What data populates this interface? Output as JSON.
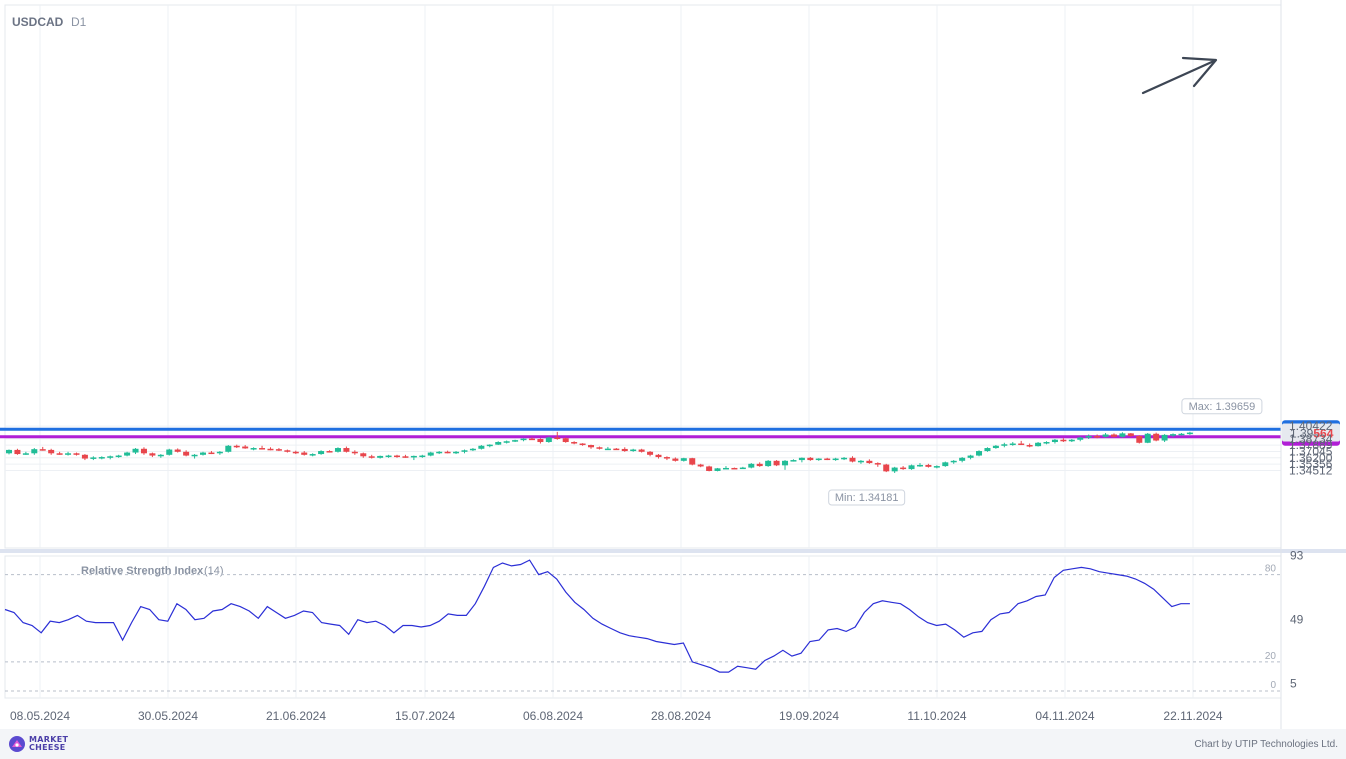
{
  "header": {
    "symbol": "USDCAD",
    "timeframe": "D1"
  },
  "chart_data": [
    {
      "type": "candlestick",
      "symbol": "USDCAD",
      "timeframe": "D1",
      "ylim": [
        1.3402,
        1.405
      ],
      "y_ticks": [
        "1.40422",
        "1.38734",
        "1.37889",
        "1.37045",
        "1.36200",
        "1.35356",
        "1.34512"
      ],
      "x_ticks": [
        "08.05.2024",
        "30.05.2024",
        "21.06.2024",
        "15.07.2024",
        "06.08.2024",
        "28.08.2024",
        "19.09.2024",
        "11.10.2024",
        "04.11.2024",
        "22.11.2024"
      ],
      "grid": true,
      "colors": {
        "up": "#21bd97",
        "down": "#e8464c"
      },
      "levels": [
        {
          "value": 1.4,
          "label": "1.40000",
          "color": "#1f6fe0"
        },
        {
          "value": 1.39,
          "label": "1.39000",
          "color": "#b11ed6"
        }
      ],
      "current_price": {
        "value": 1.39564,
        "label_prefix": "1.39",
        "label_suffix": "564"
      },
      "max_annotation": {
        "label": "Max: 1.39659",
        "value": 1.39659
      },
      "min_annotation": {
        "label": "Min: 1.34181",
        "value": 1.34181
      },
      "annotations": [
        {
          "type": "arrow",
          "direction": "up",
          "color": "#3d4654"
        }
      ],
      "candles": [
        [
          1.368,
          1.373,
          1.3665,
          1.3725
        ],
        [
          1.3725,
          1.374,
          1.366,
          1.367
        ],
        [
          1.367,
          1.37,
          1.366,
          1.368
        ],
        [
          1.368,
          1.375,
          1.366,
          1.3735
        ],
        [
          1.3735,
          1.3765,
          1.3715,
          1.3725
        ],
        [
          1.3725,
          1.374,
          1.366,
          1.368
        ],
        [
          1.368,
          1.37,
          1.366,
          1.3675
        ],
        [
          1.3675,
          1.37,
          1.365,
          1.368
        ],
        [
          1.368,
          1.369,
          1.365,
          1.366
        ],
        [
          1.366,
          1.367,
          1.359,
          1.361
        ],
        [
          1.361,
          1.364,
          1.359,
          1.3625
        ],
        [
          1.3625,
          1.364,
          1.36,
          1.363
        ],
        [
          1.363,
          1.365,
          1.36,
          1.364
        ],
        [
          1.364,
          1.366,
          1.362,
          1.365
        ],
        [
          1.365,
          1.37,
          1.364,
          1.369
        ],
        [
          1.369,
          1.375,
          1.367,
          1.374
        ],
        [
          1.374,
          1.376,
          1.366,
          1.368
        ],
        [
          1.368,
          1.369,
          1.363,
          1.365
        ],
        [
          1.365,
          1.367,
          1.362,
          1.366
        ],
        [
          1.366,
          1.374,
          1.365,
          1.373
        ],
        [
          1.373,
          1.3745,
          1.369,
          1.37
        ],
        [
          1.37,
          1.372,
          1.364,
          1.365
        ],
        [
          1.365,
          1.367,
          1.361,
          1.366
        ],
        [
          1.366,
          1.37,
          1.365,
          1.369
        ],
        [
          1.369,
          1.371,
          1.367,
          1.368
        ],
        [
          1.368,
          1.371,
          1.366,
          1.37
        ],
        [
          1.37,
          1.379,
          1.369,
          1.378
        ],
        [
          1.378,
          1.3795,
          1.375,
          1.377
        ],
        [
          1.377,
          1.379,
          1.374,
          1.3745
        ],
        [
          1.3745,
          1.376,
          1.372,
          1.375
        ],
        [
          1.375,
          1.378,
          1.373,
          1.374
        ],
        [
          1.374,
          1.376,
          1.372,
          1.3735
        ],
        [
          1.3735,
          1.375,
          1.371,
          1.372
        ],
        [
          1.372,
          1.373,
          1.369,
          1.37
        ],
        [
          1.37,
          1.3715,
          1.367,
          1.369
        ],
        [
          1.369,
          1.371,
          1.365,
          1.366
        ],
        [
          1.366,
          1.368,
          1.364,
          1.367
        ],
        [
          1.367,
          1.372,
          1.366,
          1.371
        ],
        [
          1.371,
          1.372,
          1.369,
          1.37
        ],
        [
          1.37,
          1.376,
          1.369,
          1.375
        ],
        [
          1.375,
          1.377,
          1.369,
          1.37
        ],
        [
          1.37,
          1.372,
          1.366,
          1.368
        ],
        [
          1.368,
          1.369,
          1.362,
          1.364
        ],
        [
          1.364,
          1.366,
          1.361,
          1.362
        ],
        [
          1.362,
          1.365,
          1.361,
          1.3645
        ],
        [
          1.3645,
          1.366,
          1.362,
          1.365
        ],
        [
          1.365,
          1.366,
          1.362,
          1.364
        ],
        [
          1.364,
          1.366,
          1.362,
          1.363
        ],
        [
          1.363,
          1.365,
          1.359,
          1.3645
        ],
        [
          1.3645,
          1.366,
          1.362,
          1.365
        ],
        [
          1.365,
          1.37,
          1.364,
          1.369
        ],
        [
          1.369,
          1.371,
          1.367,
          1.37
        ],
        [
          1.37,
          1.3715,
          1.368,
          1.369
        ],
        [
          1.369,
          1.371,
          1.367,
          1.37
        ],
        [
          1.37,
          1.373,
          1.368,
          1.372
        ],
        [
          1.372,
          1.375,
          1.371,
          1.374
        ],
        [
          1.374,
          1.379,
          1.373,
          1.378
        ],
        [
          1.378,
          1.38,
          1.376,
          1.3795
        ],
        [
          1.3795,
          1.384,
          1.379,
          1.383
        ],
        [
          1.383,
          1.385,
          1.381,
          1.384
        ],
        [
          1.384,
          1.386,
          1.383,
          1.3855
        ],
        [
          1.3855,
          1.388,
          1.384,
          1.3875
        ],
        [
          1.3875,
          1.389,
          1.386,
          1.387
        ],
        [
          1.387,
          1.388,
          1.381,
          1.383
        ],
        [
          1.383,
          1.39,
          1.382,
          1.389
        ],
        [
          1.389,
          1.3965,
          1.386,
          1.388
        ],
        [
          1.388,
          1.389,
          1.382,
          1.383
        ],
        [
          1.383,
          1.384,
          1.38,
          1.381
        ],
        [
          1.381,
          1.3815,
          1.378,
          1.379
        ],
        [
          1.379,
          1.3795,
          1.374,
          1.376
        ],
        [
          1.376,
          1.377,
          1.373,
          1.374
        ],
        [
          1.374,
          1.3765,
          1.373,
          1.3742
        ],
        [
          1.3742,
          1.375,
          1.373,
          1.3738
        ],
        [
          1.3738,
          1.376,
          1.37,
          1.371
        ],
        [
          1.371,
          1.374,
          1.37,
          1.373
        ],
        [
          1.373,
          1.374,
          1.369,
          1.37
        ],
        [
          1.37,
          1.371,
          1.364,
          1.366
        ],
        [
          1.366,
          1.367,
          1.361,
          1.363
        ],
        [
          1.363,
          1.364,
          1.359,
          1.361
        ],
        [
          1.361,
          1.3625,
          1.357,
          1.358
        ],
        [
          1.358,
          1.362,
          1.357,
          1.3615
        ],
        [
          1.3615,
          1.362,
          1.352,
          1.353
        ],
        [
          1.353,
          1.354,
          1.3495,
          1.3505
        ],
        [
          1.3505,
          1.3515,
          1.344,
          1.3445
        ],
        [
          1.3445,
          1.3485,
          1.344,
          1.348
        ],
        [
          1.348,
          1.351,
          1.347,
          1.3485
        ],
        [
          1.3485,
          1.349,
          1.347,
          1.348
        ],
        [
          1.348,
          1.35,
          1.348,
          1.349
        ],
        [
          1.349,
          1.355,
          1.348,
          1.354
        ],
        [
          1.354,
          1.356,
          1.35,
          1.351
        ],
        [
          1.351,
          1.359,
          1.35,
          1.358
        ],
        [
          1.358,
          1.359,
          1.351,
          1.352
        ],
        [
          1.352,
          1.359,
          1.346,
          1.358
        ],
        [
          1.358,
          1.36,
          1.357,
          1.359
        ],
        [
          1.359,
          1.3625,
          1.356,
          1.362
        ],
        [
          1.362,
          1.363,
          1.358,
          1.359
        ],
        [
          1.359,
          1.3615,
          1.358,
          1.361
        ],
        [
          1.361,
          1.362,
          1.359,
          1.36
        ],
        [
          1.36,
          1.362,
          1.358,
          1.361
        ],
        [
          1.361,
          1.363,
          1.359,
          1.362
        ],
        [
          1.362,
          1.364,
          1.356,
          1.357
        ],
        [
          1.357,
          1.359,
          1.354,
          1.358
        ],
        [
          1.358,
          1.36,
          1.354,
          1.355
        ],
        [
          1.355,
          1.356,
          1.35,
          1.353
        ],
        [
          1.353,
          1.354,
          1.343,
          1.344
        ],
        [
          1.344,
          1.35,
          1.3418,
          1.349
        ],
        [
          1.349,
          1.351,
          1.346,
          1.347
        ],
        [
          1.347,
          1.353,
          1.346,
          1.352
        ],
        [
          1.352,
          1.355,
          1.35,
          1.3525
        ],
        [
          1.3525,
          1.354,
          1.349,
          1.35
        ],
        [
          1.35,
          1.352,
          1.348,
          1.351
        ],
        [
          1.351,
          1.357,
          1.35,
          1.356
        ],
        [
          1.356,
          1.359,
          1.354,
          1.358
        ],
        [
          1.358,
          1.363,
          1.356,
          1.362
        ],
        [
          1.362,
          1.366,
          1.36,
          1.365
        ],
        [
          1.365,
          1.372,
          1.364,
          1.371
        ],
        [
          1.371,
          1.376,
          1.37,
          1.375
        ],
        [
          1.375,
          1.379,
          1.374,
          1.378
        ],
        [
          1.378,
          1.382,
          1.376,
          1.38
        ],
        [
          1.38,
          1.383,
          1.378,
          1.381
        ],
        [
          1.381,
          1.3845,
          1.379,
          1.379
        ],
        [
          1.379,
          1.381,
          1.376,
          1.3775
        ],
        [
          1.3775,
          1.383,
          1.377,
          1.382
        ],
        [
          1.382,
          1.384,
          1.38,
          1.383
        ],
        [
          1.383,
          1.387,
          1.381,
          1.386
        ],
        [
          1.386,
          1.388,
          1.383,
          1.3845
        ],
        [
          1.3845,
          1.387,
          1.383,
          1.386
        ],
        [
          1.386,
          1.39,
          1.384,
          1.389
        ],
        [
          1.389,
          1.393,
          1.387,
          1.391
        ],
        [
          1.391,
          1.393,
          1.388,
          1.39
        ],
        [
          1.39,
          1.395,
          1.389,
          1.393
        ],
        [
          1.393,
          1.3945,
          1.389,
          1.39
        ],
        [
          1.39,
          1.396,
          1.389,
          1.3945
        ],
        [
          1.3945,
          1.395,
          1.39,
          1.391
        ],
        [
          1.391,
          1.392,
          1.381,
          1.382
        ],
        [
          1.382,
          1.395,
          1.3815,
          1.394
        ],
        [
          1.394,
          1.3955,
          1.384,
          1.385
        ],
        [
          1.385,
          1.3935,
          1.383,
          1.3925
        ],
        [
          1.3925,
          1.3945,
          1.39,
          1.3935
        ],
        [
          1.3935,
          1.395,
          1.392,
          1.394
        ],
        [
          1.394,
          1.3966,
          1.3925,
          1.3955
        ]
      ]
    },
    {
      "type": "line",
      "title": "Relative Strength Index",
      "period": "(14)",
      "ylim": [
        0,
        93
      ],
      "y_ticks": [
        "93",
        "49",
        "5"
      ],
      "levels": [
        {
          "value": 80,
          "label": "80"
        },
        {
          "value": 20,
          "label": "20"
        },
        {
          "value": 0,
          "label": "0"
        }
      ],
      "color": "#2b2fd6",
      "values": [
        56,
        54,
        47,
        45,
        40,
        48,
        47,
        49,
        52,
        48,
        47,
        47,
        47,
        35,
        47,
        58,
        56,
        49,
        48,
        60,
        56,
        49,
        50,
        55,
        56,
        60,
        58,
        55,
        50,
        58,
        54,
        50,
        52,
        55,
        54,
        47,
        46,
        45,
        39,
        49,
        47,
        48,
        45,
        40,
        45,
        45,
        44,
        45,
        48,
        53,
        52,
        52,
        60,
        72,
        85,
        88,
        86,
        87,
        90,
        80,
        82,
        77,
        68,
        61,
        56,
        50,
        46,
        43,
        40,
        38,
        37,
        36,
        34,
        33,
        32,
        33,
        20,
        18,
        16,
        13,
        13,
        17,
        16,
        15,
        21,
        24,
        28,
        24,
        26,
        34,
        35,
        42,
        43,
        41,
        44,
        54,
        60,
        62,
        61,
        60,
        56,
        51,
        47,
        45,
        46,
        42,
        37,
        40,
        41,
        49,
        53,
        54,
        60,
        62,
        65,
        66,
        78,
        83,
        84,
        85,
        84,
        82,
        81,
        80,
        79,
        77,
        74,
        70,
        64,
        58,
        60,
        60
      ]
    }
  ],
  "footer": {
    "logo_line1": "MARKET",
    "logo_line2": "CHEESE",
    "credit": "Chart by UTIP Technologies Ltd."
  }
}
